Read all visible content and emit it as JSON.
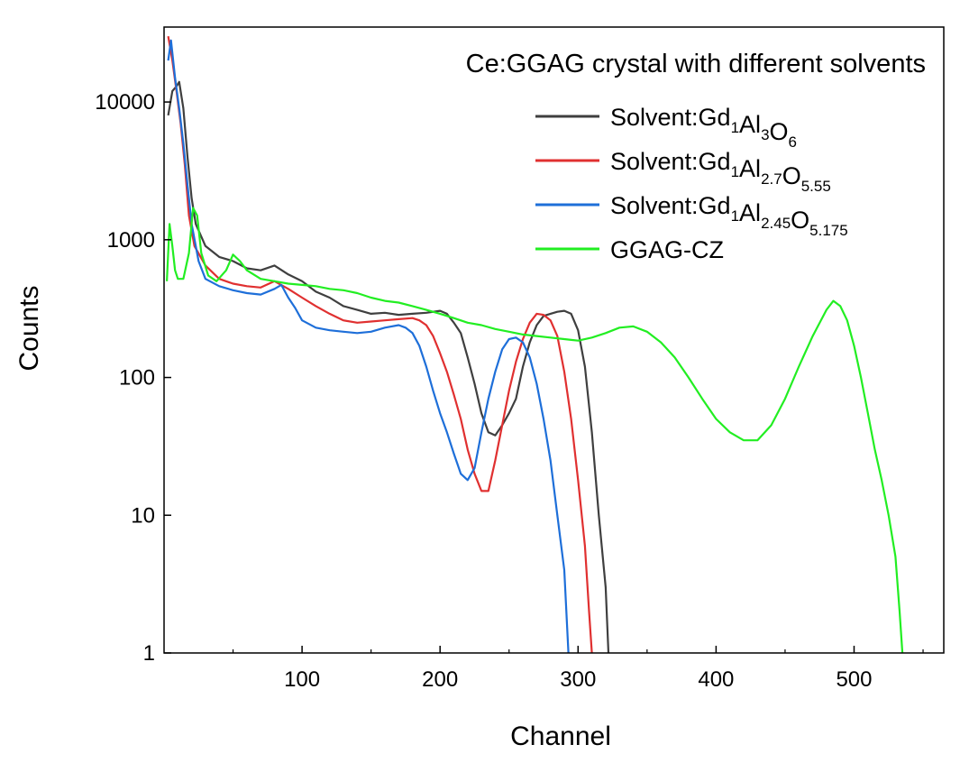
{
  "chart_data": {
    "type": "line",
    "title": "Ce:GGAG crystal with different solvents",
    "xlabel": "Channel",
    "ylabel": "Counts",
    "yscale": "log",
    "xlim": [
      0,
      565
    ],
    "ylim": [
      1,
      35000
    ],
    "x_ticks": [
      100,
      200,
      300,
      400,
      500
    ],
    "y_ticks": [
      1,
      10,
      100,
      1000,
      10000
    ],
    "y_tick_labels": [
      "1",
      "10",
      "100",
      "1000",
      "10000"
    ],
    "grid": false,
    "legend_position": "top-right",
    "series": [
      {
        "name": "Solvent:Gd1Al3O6",
        "legend_parts": [
          [
            "Solvent:Gd",
            false
          ],
          [
            "1",
            true
          ],
          [
            "Al",
            false
          ],
          [
            "3",
            true
          ],
          [
            "O",
            false
          ],
          [
            "6",
            true
          ]
        ],
        "color": "#3f3f3f",
        "points": [
          [
            3,
            8000
          ],
          [
            6,
            12000
          ],
          [
            9,
            13000
          ],
          [
            11,
            14000
          ],
          [
            14,
            9000
          ],
          [
            17,
            4000
          ],
          [
            20,
            2000
          ],
          [
            23,
            1300
          ],
          [
            30,
            900
          ],
          [
            40,
            750
          ],
          [
            50,
            700
          ],
          [
            60,
            620
          ],
          [
            70,
            600
          ],
          [
            80,
            650
          ],
          [
            90,
            560
          ],
          [
            100,
            500
          ],
          [
            110,
            420
          ],
          [
            120,
            380
          ],
          [
            130,
            330
          ],
          [
            140,
            310
          ],
          [
            150,
            290
          ],
          [
            160,
            295
          ],
          [
            170,
            285
          ],
          [
            180,
            290
          ],
          [
            190,
            295
          ],
          [
            200,
            305
          ],
          [
            205,
            290
          ],
          [
            210,
            250
          ],
          [
            215,
            210
          ],
          [
            220,
            140
          ],
          [
            225,
            90
          ],
          [
            230,
            55
          ],
          [
            235,
            40
          ],
          [
            240,
            38
          ],
          [
            245,
            45
          ],
          [
            250,
            55
          ],
          [
            255,
            70
          ],
          [
            260,
            120
          ],
          [
            265,
            180
          ],
          [
            270,
            240
          ],
          [
            275,
            280
          ],
          [
            280,
            290
          ],
          [
            285,
            300
          ],
          [
            290,
            305
          ],
          [
            295,
            290
          ],
          [
            300,
            220
          ],
          [
            305,
            120
          ],
          [
            310,
            40
          ],
          [
            315,
            10
          ],
          [
            320,
            3
          ],
          [
            322,
            1
          ]
        ]
      },
      {
        "name": "Solvent:Gd1Al2.7O5.55",
        "legend_parts": [
          [
            "Solvent:Gd",
            false
          ],
          [
            "1",
            true
          ],
          [
            "Al",
            false
          ],
          [
            "2.7",
            true
          ],
          [
            "O",
            false
          ],
          [
            "5.55",
            true
          ]
        ],
        "color": "#e03030",
        "points": [
          [
            3,
            30000
          ],
          [
            6,
            20000
          ],
          [
            9,
            12000
          ],
          [
            12,
            7000
          ],
          [
            15,
            3500
          ],
          [
            18,
            1500
          ],
          [
            22,
            900
          ],
          [
            30,
            650
          ],
          [
            40,
            520
          ],
          [
            50,
            480
          ],
          [
            60,
            460
          ],
          [
            70,
            450
          ],
          [
            80,
            500
          ],
          [
            90,
            440
          ],
          [
            100,
            380
          ],
          [
            110,
            330
          ],
          [
            120,
            290
          ],
          [
            130,
            260
          ],
          [
            140,
            250
          ],
          [
            150,
            255
          ],
          [
            160,
            260
          ],
          [
            170,
            265
          ],
          [
            180,
            270
          ],
          [
            185,
            260
          ],
          [
            190,
            240
          ],
          [
            195,
            200
          ],
          [
            200,
            150
          ],
          [
            205,
            110
          ],
          [
            210,
            75
          ],
          [
            215,
            50
          ],
          [
            220,
            30
          ],
          [
            225,
            20
          ],
          [
            230,
            15
          ],
          [
            235,
            15
          ],
          [
            240,
            25
          ],
          [
            245,
            45
          ],
          [
            250,
            80
          ],
          [
            255,
            130
          ],
          [
            260,
            190
          ],
          [
            265,
            250
          ],
          [
            270,
            290
          ],
          [
            275,
            285
          ],
          [
            280,
            260
          ],
          [
            285,
            200
          ],
          [
            290,
            110
          ],
          [
            295,
            50
          ],
          [
            300,
            18
          ],
          [
            305,
            6
          ],
          [
            308,
            2
          ],
          [
            310,
            1
          ]
        ]
      },
      {
        "name": "Solvent:Gd1Al2.45O5.175",
        "legend_parts": [
          [
            "Solvent:Gd",
            false
          ],
          [
            "1",
            true
          ],
          [
            "Al",
            false
          ],
          [
            "2.45",
            true
          ],
          [
            "O",
            false
          ],
          [
            "5.175",
            true
          ]
        ],
        "color": "#1e6fd9",
        "points": [
          [
            3,
            20000
          ],
          [
            5,
            28000
          ],
          [
            8,
            15000
          ],
          [
            11,
            9000
          ],
          [
            14,
            5000
          ],
          [
            17,
            2500
          ],
          [
            20,
            1300
          ],
          [
            25,
            700
          ],
          [
            30,
            520
          ],
          [
            40,
            460
          ],
          [
            50,
            430
          ],
          [
            60,
            410
          ],
          [
            70,
            400
          ],
          [
            80,
            440
          ],
          [
            85,
            470
          ],
          [
            90,
            380
          ],
          [
            95,
            320
          ],
          [
            100,
            260
          ],
          [
            110,
            230
          ],
          [
            120,
            220
          ],
          [
            130,
            215
          ],
          [
            140,
            210
          ],
          [
            150,
            215
          ],
          [
            160,
            230
          ],
          [
            170,
            240
          ],
          [
            175,
            230
          ],
          [
            180,
            210
          ],
          [
            185,
            170
          ],
          [
            190,
            120
          ],
          [
            195,
            80
          ],
          [
            200,
            55
          ],
          [
            205,
            40
          ],
          [
            210,
            28
          ],
          [
            215,
            20
          ],
          [
            220,
            18
          ],
          [
            225,
            22
          ],
          [
            230,
            40
          ],
          [
            235,
            70
          ],
          [
            240,
            110
          ],
          [
            245,
            160
          ],
          [
            250,
            190
          ],
          [
            255,
            195
          ],
          [
            260,
            180
          ],
          [
            265,
            140
          ],
          [
            270,
            90
          ],
          [
            275,
            50
          ],
          [
            280,
            25
          ],
          [
            285,
            10
          ],
          [
            290,
            4
          ],
          [
            293,
            1
          ]
        ]
      },
      {
        "name": "GGAG-CZ",
        "legend_parts": [
          [
            "GGAG-CZ",
            false
          ]
        ],
        "color": "#22ee22",
        "points": [
          [
            2,
            500
          ],
          [
            4,
            1300
          ],
          [
            6,
            900
          ],
          [
            8,
            600
          ],
          [
            10,
            520
          ],
          [
            14,
            520
          ],
          [
            18,
            800
          ],
          [
            21,
            1700
          ],
          [
            24,
            1500
          ],
          [
            27,
            800
          ],
          [
            32,
            550
          ],
          [
            38,
            500
          ],
          [
            45,
            600
          ],
          [
            50,
            780
          ],
          [
            55,
            700
          ],
          [
            60,
            600
          ],
          [
            70,
            520
          ],
          [
            80,
            500
          ],
          [
            90,
            480
          ],
          [
            100,
            470
          ],
          [
            110,
            460
          ],
          [
            120,
            440
          ],
          [
            130,
            430
          ],
          [
            140,
            410
          ],
          [
            150,
            380
          ],
          [
            160,
            360
          ],
          [
            170,
            350
          ],
          [
            180,
            330
          ],
          [
            190,
            310
          ],
          [
            200,
            290
          ],
          [
            210,
            270
          ],
          [
            220,
            250
          ],
          [
            230,
            240
          ],
          [
            240,
            225
          ],
          [
            250,
            215
          ],
          [
            260,
            205
          ],
          [
            270,
            200
          ],
          [
            280,
            195
          ],
          [
            290,
            190
          ],
          [
            300,
            185
          ],
          [
            310,
            195
          ],
          [
            320,
            210
          ],
          [
            330,
            230
          ],
          [
            340,
            235
          ],
          [
            350,
            215
          ],
          [
            360,
            180
          ],
          [
            370,
            140
          ],
          [
            380,
            100
          ],
          [
            390,
            70
          ],
          [
            400,
            50
          ],
          [
            410,
            40
          ],
          [
            420,
            35
          ],
          [
            430,
            35
          ],
          [
            440,
            45
          ],
          [
            450,
            70
          ],
          [
            460,
            120
          ],
          [
            470,
            200
          ],
          [
            480,
            310
          ],
          [
            485,
            360
          ],
          [
            490,
            330
          ],
          [
            495,
            260
          ],
          [
            500,
            170
          ],
          [
            505,
            100
          ],
          [
            510,
            55
          ],
          [
            515,
            30
          ],
          [
            520,
            18
          ],
          [
            525,
            10
          ],
          [
            530,
            5
          ],
          [
            533,
            2
          ],
          [
            535,
            1
          ]
        ]
      }
    ]
  }
}
